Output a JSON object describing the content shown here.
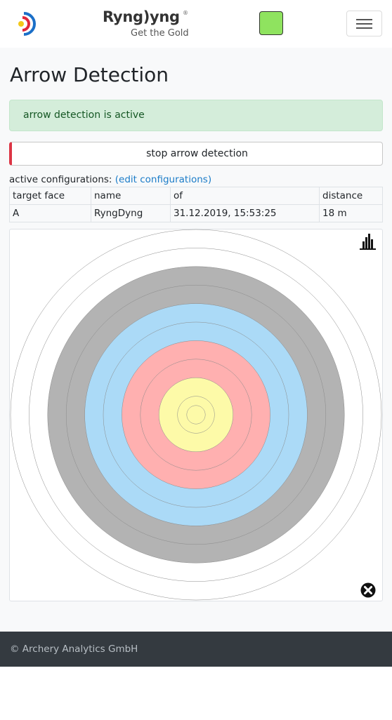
{
  "header": {
    "logo": {
      "word": "Ryng)yng",
      "tagline": "Get the Gold",
      "registered": "®"
    },
    "status_color": "#8fe35f",
    "menu_icon": "hamburger-icon"
  },
  "page": {
    "title": "Arrow Detection"
  },
  "alert": {
    "text": "arrow detection is active",
    "color": "#d4edda"
  },
  "stop_button": {
    "label": "stop arrow detection",
    "accent": "#dc3545"
  },
  "configurations": {
    "label": "active configurations:",
    "edit_link": "(edit configurations)",
    "columns": [
      "target face",
      "name",
      "of",
      "distance"
    ],
    "rows": [
      [
        "A",
        "RyngDyng",
        "31.12.2019, 15:53:25",
        "18 m"
      ]
    ]
  },
  "target": {
    "ring_colors": {
      "white": "#ffffff",
      "black": "#b3b3b3",
      "blue": "#abdaf7",
      "red": "#ffb0b0",
      "gold": "#fdfaa8"
    },
    "stats_icon": "bar-chart-icon",
    "close_icon": "close-circle-icon"
  },
  "footer": {
    "text": "© Archery Analytics GmbH"
  }
}
